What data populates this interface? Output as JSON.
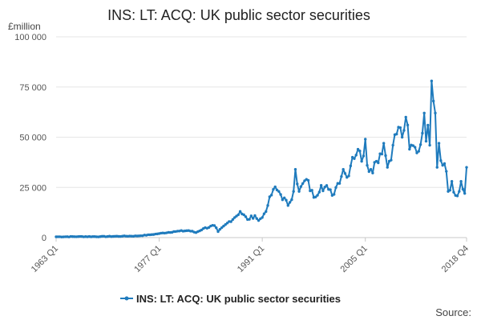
{
  "chart_data": {
    "type": "line",
    "title": "INS: LT: ACQ: UK public sector securities",
    "unit_label": "£million",
    "source_label": "Source:",
    "xlabel": "",
    "ylabel": "",
    "ylim": [
      0,
      100000
    ],
    "y_ticks": [
      "0",
      "25 000",
      "50 000",
      "75 000",
      "100 000"
    ],
    "y_tick_values": [
      0,
      25000,
      50000,
      75000,
      100000
    ],
    "x_tick_labels": [
      "1963 Q1",
      "1977 Q1",
      "1991 Q1",
      "2005 Q1",
      "2018 Q4"
    ],
    "x_range": [
      "1963 Q1",
      "2018 Q4"
    ],
    "grid": true,
    "legend_position": "bottom",
    "colors": {
      "series": "#1f7bbd"
    },
    "series": [
      {
        "name": "INS: LT: ACQ: UK public sector securities",
        "anchors": [
          [
            "1963 Q1",
            400
          ],
          [
            "1966 Q1",
            500
          ],
          [
            "1969 Q1",
            500
          ],
          [
            "1972 Q1",
            700
          ],
          [
            "1974 Q1",
            800
          ],
          [
            "1976 Q1",
            1500
          ],
          [
            "1977 Q1",
            2000
          ],
          [
            "1979 Q1",
            3000
          ],
          [
            "1981 Q1",
            3500
          ],
          [
            "1982 Q1",
            2500
          ],
          [
            "1983 Q1",
            4500
          ],
          [
            "1984 Q3",
            6000
          ],
          [
            "1985 Q1",
            3000
          ],
          [
            "1986 Q3",
            8000
          ],
          [
            "1987 Q2",
            10000
          ],
          [
            "1988 Q1",
            13000
          ],
          [
            "1989 Q1",
            9000
          ],
          [
            "1990 Q1",
            11000
          ],
          [
            "1990 Q3",
            8500
          ],
          [
            "1991 Q1",
            10000
          ],
          [
            "1991 Q4",
            16000
          ],
          [
            "1992 Q3",
            24000
          ],
          [
            "1993 Q2",
            23000
          ],
          [
            "1994 Q3",
            16000
          ],
          [
            "1995 Q2",
            23000
          ],
          [
            "1995 Q3",
            34000
          ],
          [
            "1996 Q1",
            23000
          ],
          [
            "1997 Q1",
            29000
          ],
          [
            "1998 Q1",
            20000
          ],
          [
            "1999 Q1",
            26000
          ],
          [
            "2000 Q1",
            24000
          ],
          [
            "2000 Q3",
            21000
          ],
          [
            "2001 Q2",
            27000
          ],
          [
            "2002 Q1",
            34000
          ],
          [
            "2002 Q3",
            30000
          ],
          [
            "2003 Q2",
            40000
          ],
          [
            "2004 Q1",
            44000
          ],
          [
            "2004 Q3",
            38000
          ],
          [
            "2005 Q1",
            49000
          ],
          [
            "2005 Q2",
            36000
          ],
          [
            "2005 Q4",
            34000
          ],
          [
            "2006 Q3",
            38000
          ],
          [
            "2007 Q3",
            47000
          ],
          [
            "2008 Q1",
            35000
          ],
          [
            "2008 Q4",
            46000
          ],
          [
            "2009 Q3",
            55000
          ],
          [
            "2010 Q1",
            50000
          ],
          [
            "2010 Q3",
            60000
          ],
          [
            "2011 Q1",
            44000
          ],
          [
            "2011 Q4",
            45000
          ],
          [
            "2012 Q2",
            43000
          ],
          [
            "2012 Q4",
            52000
          ],
          [
            "2013 Q1",
            62000
          ],
          [
            "2013 Q2",
            48000
          ],
          [
            "2013 Q3",
            56000
          ],
          [
            "2013 Q4",
            46000
          ],
          [
            "2014 Q1",
            78000
          ],
          [
            "2014 Q2",
            68000
          ],
          [
            "2014 Q3",
            62000
          ],
          [
            "2014 Q4",
            35000
          ],
          [
            "2015 Q1",
            47000
          ],
          [
            "2015 Q3",
            36000
          ],
          [
            "2016 Q1",
            33000
          ],
          [
            "2016 Q2",
            23000
          ],
          [
            "2016 Q4",
            28000
          ],
          [
            "2017 Q2",
            21000
          ],
          [
            "2017 Q4",
            23000
          ],
          [
            "2018 Q1",
            28000
          ],
          [
            "2018 Q3",
            22000
          ],
          [
            "2018 Q4",
            35000
          ]
        ]
      }
    ]
  }
}
